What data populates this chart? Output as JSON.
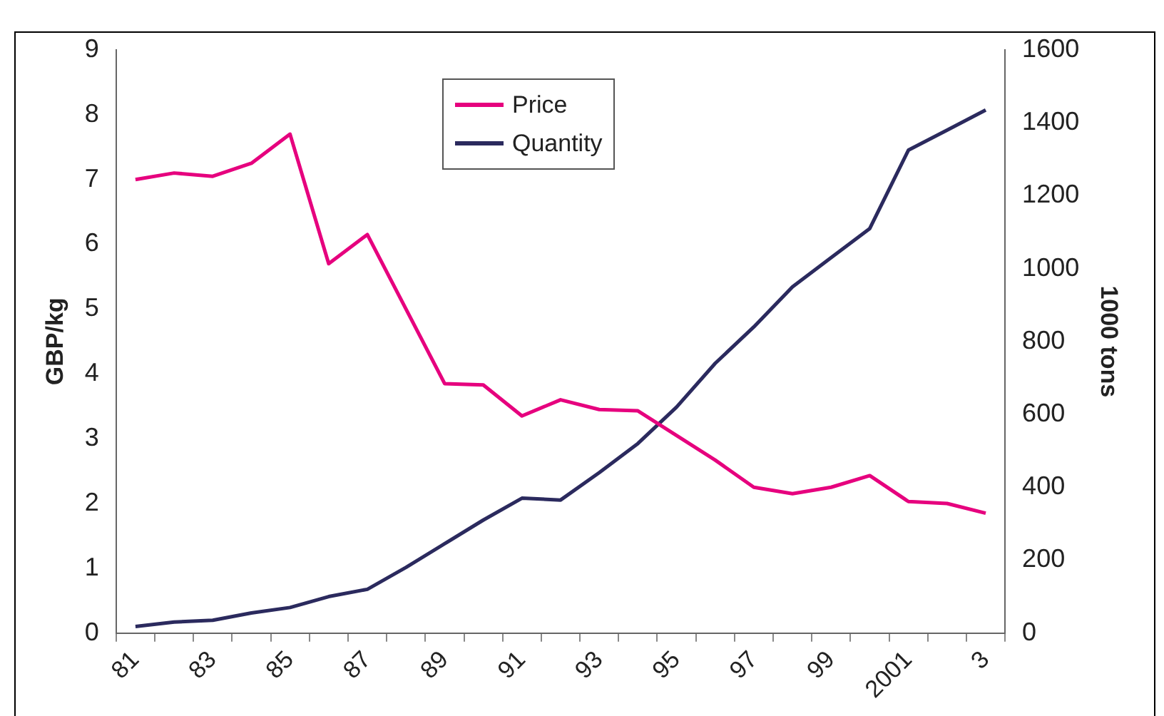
{
  "chart_data": {
    "type": "line",
    "categories": [
      "81",
      null,
      "83",
      null,
      "85",
      null,
      "87",
      null,
      "89",
      null,
      "91",
      null,
      "93",
      null,
      "95",
      null,
      "97",
      null,
      "99",
      null,
      "2001",
      null,
      "3"
    ],
    "ylabel": "GBP/kg",
    "y2label": "1000 tons",
    "ylim": [
      0,
      9
    ],
    "yticks": [
      0,
      1,
      2,
      3,
      4,
      5,
      6,
      7,
      8,
      9
    ],
    "y2lim": [
      0,
      1600
    ],
    "y2ticks": [
      0,
      200,
      400,
      600,
      800,
      1000,
      1200,
      1400,
      1600
    ],
    "series": [
      {
        "name": "Price",
        "color": "#e6007e",
        "values": [
          7.0,
          7.1,
          7.05,
          7.25,
          7.7,
          5.7,
          6.15,
          5.0,
          3.85,
          3.83,
          3.35,
          3.6,
          3.45,
          3.43,
          3.05,
          2.67,
          2.25,
          2.15,
          2.25,
          2.43,
          2.03,
          2.0,
          1.85
        ]
      },
      {
        "name": "Quantity",
        "color": "#2b2a5e",
        "axis": "y2",
        "values": [
          18,
          30,
          35,
          55,
          70,
          100,
          120,
          180,
          245,
          310,
          370,
          365,
          440,
          520,
          620,
          740,
          840,
          950,
          1030,
          1110,
          1325,
          1380,
          1435
        ]
      }
    ],
    "legend": "top",
    "grid": false,
    "marker": "none",
    "line_style": "solid"
  }
}
